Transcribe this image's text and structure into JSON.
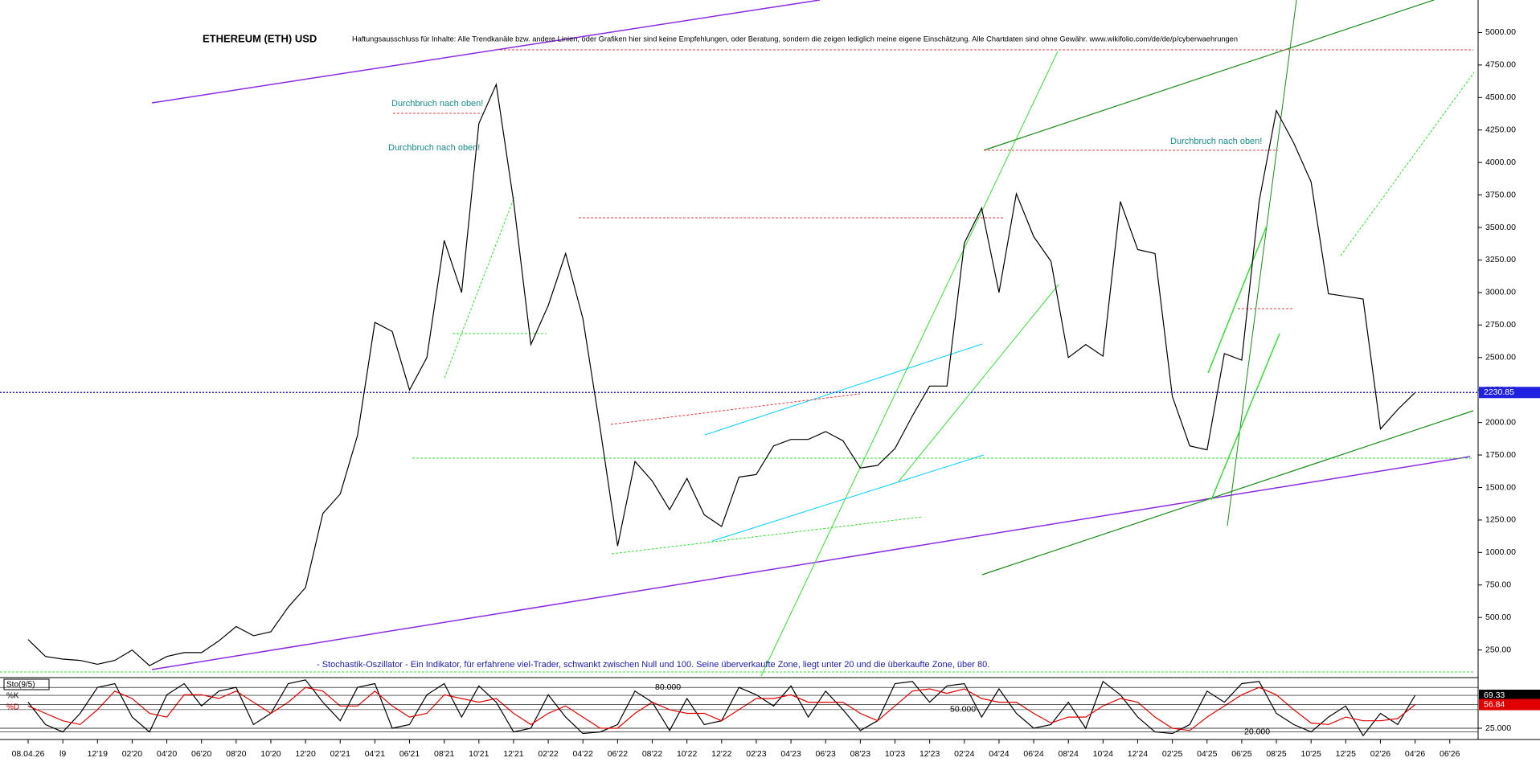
{
  "chart_data": [
    {
      "type": "line",
      "title": "ETHEREUM (ETH) USD",
      "subtitle": "Haftungsausschluss für Inhalte: Alle Trendkanäle bzw. andere Linien, oder Grafiken hier sind keine Empfehlungen, oder Beratung, sondern die zeigen lediglich meine eigene Einschätzung. Alle Chartdaten sind ohne Gewähr. www.wikifolio.com/de/de/p/cyberwaehrungen",
      "annotations": [
        "Durchbruch nach oben!",
        "Durchbruch nach oben!",
        "Durchbruch nach oben!",
        "- Stochastik-Oszillator - Ein Indikator, für erfahrene viel-Trader, schwankt zwischen Null und 100. Seine überverkaufte Zone, liegt unter 20 und die überkaufte Zone, über 80."
      ],
      "categories": [
        "08.04.26",
        null,
        "l9",
        null,
        "12'19",
        null,
        "02'20",
        null,
        "04'20",
        null,
        "06'20",
        null,
        "08'20",
        null,
        "10'20",
        null,
        "12'20",
        null,
        "02'21",
        null,
        "04'21",
        null,
        "06'21",
        null,
        "08'21",
        null,
        "10'21",
        null,
        "12'21",
        null,
        "02'22",
        null,
        "04'22",
        null,
        "06'22",
        null,
        "08'22",
        null,
        "10'22",
        null,
        "12'22",
        null,
        "02'23",
        null,
        "04'23",
        null,
        "06'23",
        null,
        "08'23",
        null,
        "10'23",
        null,
        "12'23",
        null,
        "02'24",
        null,
        "04'24",
        null,
        "06'24",
        null,
        "08'24",
        null,
        "10'24",
        null,
        "12'24",
        null,
        "02'25",
        null,
        "04'25",
        null,
        "06'25",
        null,
        "08'25",
        null,
        "10'25",
        null,
        "12'25",
        null,
        "02'26",
        null,
        "04'26",
        null,
        "06'26"
      ],
      "values": [
        330,
        200,
        180,
        170,
        140,
        170,
        250,
        130,
        200,
        230,
        230,
        320,
        430,
        360,
        390,
        580,
        730,
        1300,
        1450,
        1900,
        2770,
        2700,
        2250,
        2500,
        3400,
        3000,
        4300,
        4600,
        3700,
        2600,
        2900,
        3300,
        2800,
        1950,
        1050,
        1700,
        1550,
        1330,
        1570,
        1290,
        1200,
        1580,
        1600,
        1820,
        1870,
        1870,
        1930,
        1860,
        1650,
        1670,
        1800,
        2050,
        2280,
        2280,
        3380,
        3650,
        3000,
        3760,
        3430,
        3240,
        2500,
        2600,
        2510,
        3700,
        3330,
        3300,
        2200,
        1820,
        1790,
        2530,
        2480,
        3700,
        4400,
        4150,
        3850,
        2990,
        2970,
        2950,
        1950,
        2100,
        2230.85,
        null,
        null
      ],
      "color": "#000000",
      "last_color": "#2020e0",
      "ylim": [
        50,
        5250
      ],
      "yticks": [
        {
          "value": 250,
          "label": "250.00"
        },
        {
          "value": 500,
          "label": "500.00"
        },
        {
          "value": 750,
          "label": "750.00"
        },
        {
          "value": 1000,
          "label": "1000.00"
        },
        {
          "value": 1250,
          "label": "1250.00"
        },
        {
          "value": 1500,
          "label": "1500.00"
        },
        {
          "value": 1750,
          "label": "1750.00"
        },
        {
          "value": 2000,
          "label": "2000.00"
        },
        {
          "value": 2250,
          "label": "2250.00"
        },
        {
          "value": 2500,
          "label": "2500.00"
        },
        {
          "value": 2750,
          "label": "2750.00"
        },
        {
          "value": 3000,
          "label": "3000.00"
        },
        {
          "value": 3250,
          "label": "3250.00"
        },
        {
          "value": 3500,
          "label": "3500.00"
        },
        {
          "value": 3750,
          "label": "3750.00"
        },
        {
          "value": 4000,
          "label": "4000.00"
        },
        {
          "value": 4250,
          "label": "4250.00"
        },
        {
          "value": 4500,
          "label": "4500.00"
        },
        {
          "value": 4750,
          "label": "4750.00"
        },
        {
          "value": 5000,
          "label": "5000.00"
        }
      ]
    },
    {
      "type": "line",
      "title": "Sto(9/5)",
      "series": [
        {
          "name": "%K",
          "color": "#000000",
          "values": [
            60,
            30,
            20,
            45,
            80,
            85,
            40,
            20,
            70,
            85,
            55,
            75,
            80,
            30,
            45,
            85,
            90,
            60,
            35,
            80,
            85,
            25,
            30,
            70,
            85,
            40,
            82,
            60,
            20,
            25,
            70,
            40,
            18,
            20,
            30,
            75,
            60,
            22,
            65,
            30,
            35,
            80,
            70,
            55,
            82,
            40,
            75,
            50,
            22,
            35,
            85,
            88,
            60,
            82,
            85,
            40,
            78,
            45,
            25,
            30,
            60,
            25,
            88,
            70,
            40,
            20,
            18,
            30,
            75,
            60,
            85,
            88,
            45,
            30,
            20,
            40,
            55,
            15,
            45,
            30,
            69.33,
            null,
            null
          ]
        },
        {
          "name": "%D",
          "color": "#e00000",
          "values": [
            55,
            45,
            35,
            30,
            50,
            75,
            65,
            45,
            40,
            70,
            70,
            65,
            75,
            60,
            45,
            60,
            80,
            75,
            55,
            55,
            75,
            55,
            40,
            45,
            70,
            65,
            60,
            65,
            45,
            30,
            45,
            55,
            40,
            25,
            25,
            45,
            60,
            50,
            45,
            45,
            35,
            50,
            65,
            65,
            70,
            60,
            60,
            60,
            45,
            35,
            55,
            75,
            78,
            72,
            78,
            65,
            60,
            60,
            45,
            32,
            40,
            40,
            55,
            65,
            60,
            40,
            25,
            22,
            40,
            55,
            70,
            80,
            70,
            50,
            32,
            30,
            40,
            35,
            35,
            38,
            56.84,
            null,
            null
          ]
        }
      ],
      "levels": [
        {
          "value": 80,
          "label": "80.000"
        },
        {
          "value": 50,
          "label": "50.000"
        },
        {
          "value": 20,
          "label": "20.000"
        }
      ],
      "ylim": [
        12,
        91
      ],
      "yticks": [
        {
          "value": 25,
          "label": "25.000"
        }
      ]
    }
  ]
}
